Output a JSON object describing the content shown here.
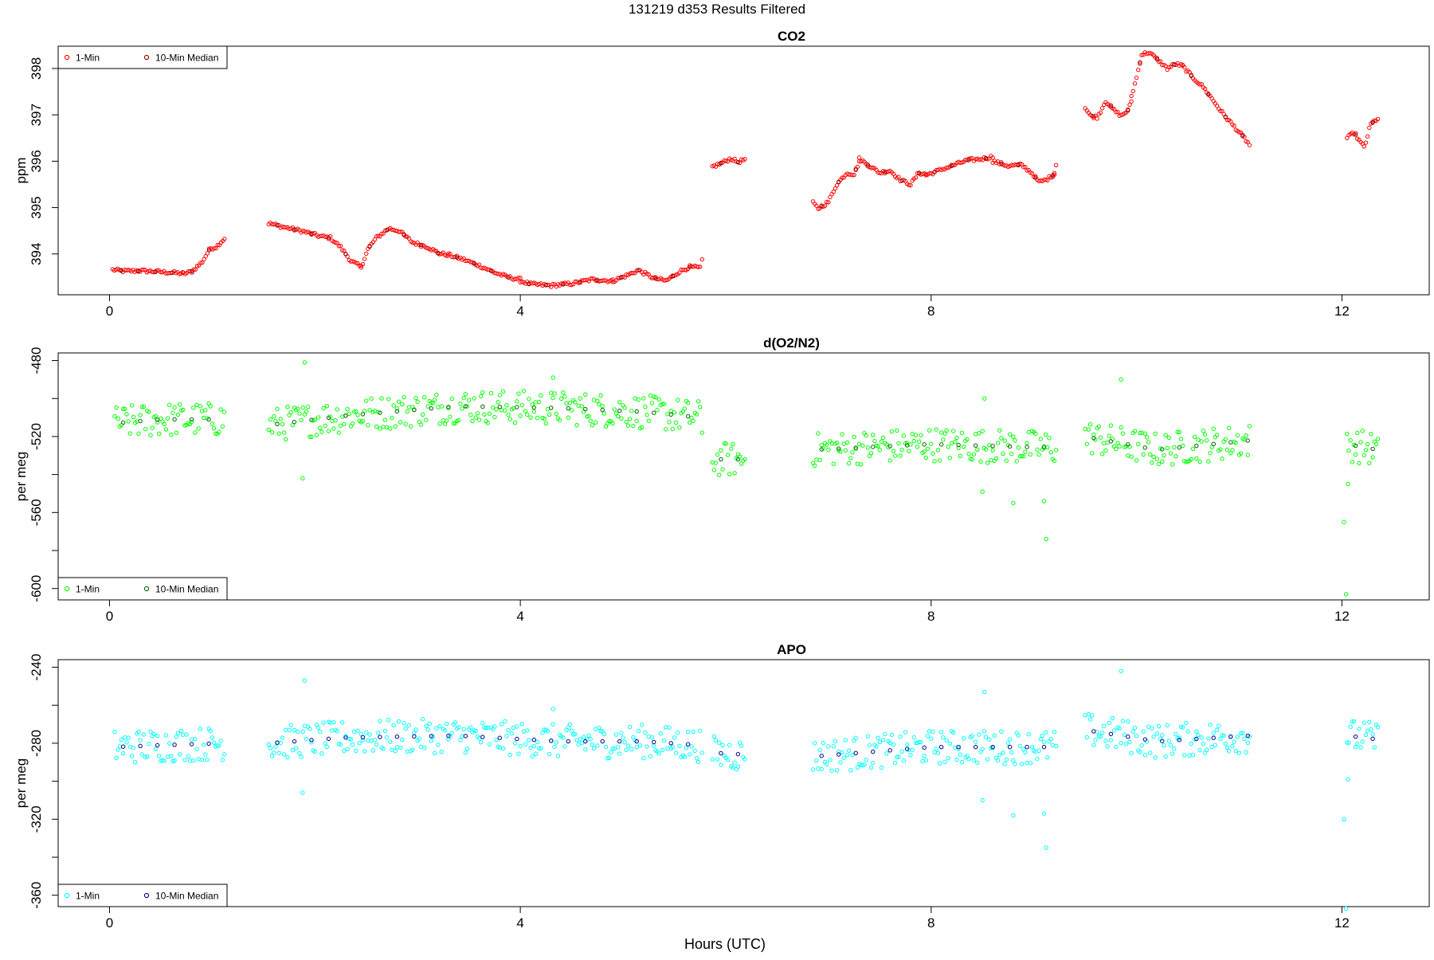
{
  "figure_title": "131219   d353   Results Filtered",
  "xlabel": "Hours (UTC)",
  "chart_data": [
    {
      "type": "scatter",
      "title": "CO2",
      "ylabel": "ppm",
      "xlim": [
        -0.5,
        12.85
      ],
      "ylim": [
        393.12,
        398.48
      ],
      "xticks": [
        0,
        4,
        8,
        12
      ],
      "yticks_labeled": [
        394,
        395,
        396,
        397,
        398
      ],
      "yticks_minor": [],
      "grid": false,
      "legend": {
        "position": "top-left",
        "entries": [
          "1-Min",
          "10-Min Median"
        ]
      },
      "colors": {
        "one_min": "#ff0000",
        "median": "#8b0000"
      },
      "segments": [
        {
          "x0": 0.03,
          "x1": 0.72,
          "pts": [
            [
              0.03,
              393.66
            ],
            [
              0.15,
              393.63
            ],
            [
              0.3,
              393.64
            ],
            [
              0.45,
              393.62
            ],
            [
              0.6,
              393.6
            ],
            [
              0.72,
              393.58
            ]
          ]
        },
        {
          "x0": 0.72,
          "x1": 1.12,
          "pts": [
            [
              0.72,
              393.57
            ],
            [
              0.8,
              393.62
            ],
            [
              0.9,
              393.82
            ],
            [
              0.98,
              394.12
            ],
            [
              1.04,
              394.15
            ],
            [
              1.08,
              394.25
            ],
            [
              1.12,
              394.33
            ]
          ]
        },
        {
          "x0": 1.55,
          "x1": 2.45,
          "pts": [
            [
              1.55,
              394.66
            ],
            [
              1.7,
              394.58
            ],
            [
              1.9,
              394.48
            ],
            [
              2.05,
              394.38
            ],
            [
              2.15,
              394.35
            ],
            [
              2.25,
              394.15
            ],
            [
              2.35,
              393.85
            ],
            [
              2.45,
              393.72
            ]
          ]
        },
        {
          "x0": 2.45,
          "x1": 3.3,
          "pts": [
            [
              2.45,
              393.72
            ],
            [
              2.52,
              394.12
            ],
            [
              2.6,
              394.35
            ],
            [
              2.72,
              394.55
            ],
            [
              2.82,
              394.5
            ],
            [
              2.95,
              394.25
            ],
            [
              3.1,
              394.15
            ],
            [
              3.2,
              394.02
            ],
            [
              3.3,
              393.98
            ]
          ]
        },
        {
          "x0": 3.3,
          "x1": 4.0,
          "pts": [
            [
              3.3,
              393.98
            ],
            [
              3.45,
              393.88
            ],
            [
              3.6,
              393.75
            ],
            [
              3.75,
              393.6
            ],
            [
              3.88,
              393.5
            ],
            [
              4.0,
              393.45
            ]
          ]
        },
        {
          "x0": 4.0,
          "x1": 4.9,
          "pts": [
            [
              4.0,
              393.42
            ],
            [
              4.1,
              393.35
            ],
            [
              4.3,
              393.32
            ],
            [
              4.5,
              393.36
            ],
            [
              4.7,
              393.45
            ],
            [
              4.9,
              393.42
            ]
          ]
        },
        {
          "x0": 4.9,
          "x1": 5.76,
          "pts": [
            [
              4.9,
              393.42
            ],
            [
              5.05,
              393.55
            ],
            [
              5.15,
              393.65
            ],
            [
              5.3,
              393.48
            ],
            [
              5.42,
              393.42
            ],
            [
              5.55,
              393.62
            ],
            [
              5.65,
              393.72
            ],
            [
              5.76,
              393.7
            ]
          ]
        },
        {
          "x0": 5.77,
          "x1": 5.78,
          "pts": [
            [
              5.77,
              393.85
            ],
            [
              5.78,
              394.0
            ]
          ]
        },
        {
          "x0": 5.87,
          "x1": 6.2,
          "pts": [
            [
              5.87,
              395.88
            ],
            [
              5.95,
              395.95
            ],
            [
              6.05,
              396.06
            ],
            [
              6.12,
              395.98
            ],
            [
              6.2,
              396.05
            ]
          ]
        },
        {
          "x0": 6.85,
          "x1": 7.3,
          "pts": [
            [
              6.85,
              395.1
            ],
            [
              6.9,
              394.98
            ],
            [
              7.0,
              395.12
            ],
            [
              7.08,
              395.5
            ],
            [
              7.18,
              395.75
            ],
            [
              7.25,
              395.72
            ],
            [
              7.3,
              396.0
            ]
          ]
        },
        {
          "x0": 7.3,
          "x1": 7.95,
          "pts": [
            [
              7.3,
              396.05
            ],
            [
              7.4,
              395.9
            ],
            [
              7.5,
              395.75
            ],
            [
              7.6,
              395.8
            ],
            [
              7.7,
              395.6
            ],
            [
              7.8,
              395.5
            ],
            [
              7.88,
              395.75
            ],
            [
              7.95,
              395.72
            ]
          ]
        },
        {
          "x0": 7.95,
          "x1": 8.6,
          "pts": [
            [
              7.95,
              395.7
            ],
            [
              8.05,
              395.78
            ],
            [
              8.2,
              395.9
            ],
            [
              8.35,
              396.02
            ],
            [
              8.5,
              396.05
            ],
            [
              8.6,
              396.1
            ]
          ]
        },
        {
          "x0": 8.6,
          "x1": 9.2,
          "pts": [
            [
              8.6,
              396.0
            ],
            [
              8.75,
              395.9
            ],
            [
              8.88,
              395.92
            ],
            [
              8.98,
              395.75
            ],
            [
              9.05,
              395.55
            ],
            [
              9.12,
              395.6
            ],
            [
              9.2,
              395.72
            ]
          ]
        },
        {
          "x0": 9.2,
          "x1": 9.22,
          "pts": [
            [
              9.2,
              395.75
            ],
            [
              9.22,
              395.98
            ]
          ]
        },
        {
          "x0": 9.5,
          "x1": 9.95,
          "pts": [
            [
              9.5,
              397.15
            ],
            [
              9.55,
              396.98
            ],
            [
              9.62,
              396.95
            ],
            [
              9.7,
              397.3
            ],
            [
              9.78,
              397.1
            ],
            [
              9.85,
              396.98
            ],
            [
              9.92,
              397.1
            ],
            [
              9.95,
              397.3
            ]
          ]
        },
        {
          "x0": 9.95,
          "x1": 10.45,
          "pts": [
            [
              9.95,
              397.4
            ],
            [
              10.0,
              397.8
            ],
            [
              10.05,
              398.3
            ],
            [
              10.12,
              398.35
            ],
            [
              10.2,
              398.2
            ],
            [
              10.3,
              398.0
            ],
            [
              10.38,
              398.1
            ],
            [
              10.45,
              398.05
            ]
          ]
        },
        {
          "x0": 10.45,
          "x1": 11.1,
          "pts": [
            [
              10.45,
              398.05
            ],
            [
              10.55,
              397.8
            ],
            [
              10.65,
              397.6
            ],
            [
              10.75,
              397.3
            ],
            [
              10.85,
              397.0
            ],
            [
              10.95,
              396.75
            ],
            [
              11.05,
              396.5
            ],
            [
              11.1,
              396.35
            ]
          ]
        },
        {
          "x0": 12.05,
          "x1": 12.35,
          "pts": [
            [
              12.05,
              396.5
            ],
            [
              12.12,
              396.62
            ],
            [
              12.18,
              396.4
            ],
            [
              12.22,
              396.3
            ],
            [
              12.28,
              396.8
            ],
            [
              12.35,
              396.92
            ]
          ]
        }
      ],
      "jitter": 0.035,
      "outliers": []
    },
    {
      "type": "scatter",
      "title": "d(O2/N2)",
      "ylabel": "per meg",
      "xlim": [
        -0.5,
        12.85
      ],
      "ylim": [
        -606,
        -476
      ],
      "xticks": [
        0,
        4,
        8,
        12
      ],
      "yticks_labeled": [
        -480,
        -520,
        -560,
        -600
      ],
      "yticks_minor": [
        -500,
        -540,
        -580
      ],
      "grid": false,
      "legend": {
        "position": "bottom-left",
        "entries": [
          "1-Min",
          "10-Min Median"
        ]
      },
      "colors": {
        "one_min": "#00ff00",
        "median": "#006400"
      },
      "segments": [
        {
          "x0": 0.05,
          "x1": 1.12,
          "pts": [
            [
              0.05,
              -513
            ],
            [
              0.5,
              -511
            ],
            [
              1.12,
              -511
            ]
          ]
        },
        {
          "x0": 1.55,
          "x1": 5.76,
          "pts": [
            [
              1.55,
              -514
            ],
            [
              2.3,
              -509
            ],
            [
              3.4,
              -504
            ],
            [
              4.4,
              -505
            ],
            [
              5.2,
              -507
            ],
            [
              5.76,
              -510
            ]
          ]
        },
        {
          "x0": 5.87,
          "x1": 6.2,
          "pts": [
            [
              5.87,
              -532
            ],
            [
              6.2,
              -532
            ]
          ]
        },
        {
          "x0": 6.85,
          "x1": 9.22,
          "pts": [
            [
              6.85,
              -527
            ],
            [
              8.0,
              -524
            ],
            [
              9.22,
              -526
            ]
          ]
        },
        {
          "x0": 9.5,
          "x1": 11.1,
          "pts": [
            [
              9.5,
              -520
            ],
            [
              10.2,
              -527
            ],
            [
              11.1,
              -522
            ]
          ]
        },
        {
          "x0": 12.05,
          "x1": 12.35,
          "pts": [
            [
              12.05,
              -524
            ],
            [
              12.35,
              -527
            ]
          ]
        }
      ],
      "jitter": 9,
      "outliers": [
        [
          1.9,
          -481
        ],
        [
          1.88,
          -542
        ],
        [
          4.32,
          -489
        ],
        [
          5.77,
          -518
        ],
        [
          8.52,
          -500
        ],
        [
          8.5,
          -549
        ],
        [
          8.8,
          -555
        ],
        [
          9.1,
          -554
        ],
        [
          9.12,
          -574
        ],
        [
          9.85,
          -490
        ],
        [
          12.02,
          -565
        ],
        [
          12.04,
          -603
        ],
        [
          12.06,
          -545
        ]
      ]
    },
    {
      "type": "scatter",
      "title": "APO",
      "ylabel": "per meg",
      "xlim": [
        -0.5,
        12.85
      ],
      "ylim": [
        -366,
        -236
      ],
      "xticks": [
        0,
        4,
        8,
        12
      ],
      "yticks_labeled": [
        -240,
        -280,
        -320,
        -360
      ],
      "yticks_minor": [
        -260,
        -300,
        -340
      ],
      "grid": false,
      "legend": {
        "position": "bottom-left",
        "entries": [
          "1-Min",
          "10-Min Median"
        ]
      },
      "colors": {
        "one_min": "#00ffff",
        "median": "#00008b"
      },
      "segments": [
        {
          "x0": 0.05,
          "x1": 1.12,
          "pts": [
            [
              0.05,
              -282
            ],
            [
              0.5,
              -281
            ],
            [
              1.12,
              -280
            ]
          ]
        },
        {
          "x0": 1.55,
          "x1": 5.76,
          "pts": [
            [
              1.55,
              -280
            ],
            [
              2.3,
              -277
            ],
            [
              3.4,
              -276
            ],
            [
              4.4,
              -279
            ],
            [
              5.2,
              -279
            ],
            [
              5.76,
              -281
            ]
          ]
        },
        {
          "x0": 5.87,
          "x1": 6.2,
          "pts": [
            [
              5.87,
              -285
            ],
            [
              6.2,
              -286
            ]
          ]
        },
        {
          "x0": 6.85,
          "x1": 9.22,
          "pts": [
            [
              6.85,
              -287
            ],
            [
              8.0,
              -282
            ],
            [
              9.22,
              -282
            ]
          ]
        },
        {
          "x0": 9.5,
          "x1": 11.1,
          "pts": [
            [
              9.5,
              -273
            ],
            [
              10.2,
              -279
            ],
            [
              11.1,
              -276
            ]
          ]
        },
        {
          "x0": 12.05,
          "x1": 12.35,
          "pts": [
            [
              12.05,
              -276
            ],
            [
              12.35,
              -278
            ]
          ]
        }
      ],
      "jitter": 9,
      "outliers": [
        [
          1.9,
          -247
        ],
        [
          1.88,
          -306
        ],
        [
          4.32,
          -262
        ],
        [
          5.77,
          -285
        ],
        [
          8.52,
          -253
        ],
        [
          8.5,
          -310
        ],
        [
          8.8,
          -318
        ],
        [
          9.1,
          -317
        ],
        [
          9.12,
          -335
        ],
        [
          9.85,
          -242
        ],
        [
          12.02,
          -320
        ],
        [
          12.04,
          -367
        ],
        [
          12.06,
          -299
        ]
      ]
    }
  ]
}
